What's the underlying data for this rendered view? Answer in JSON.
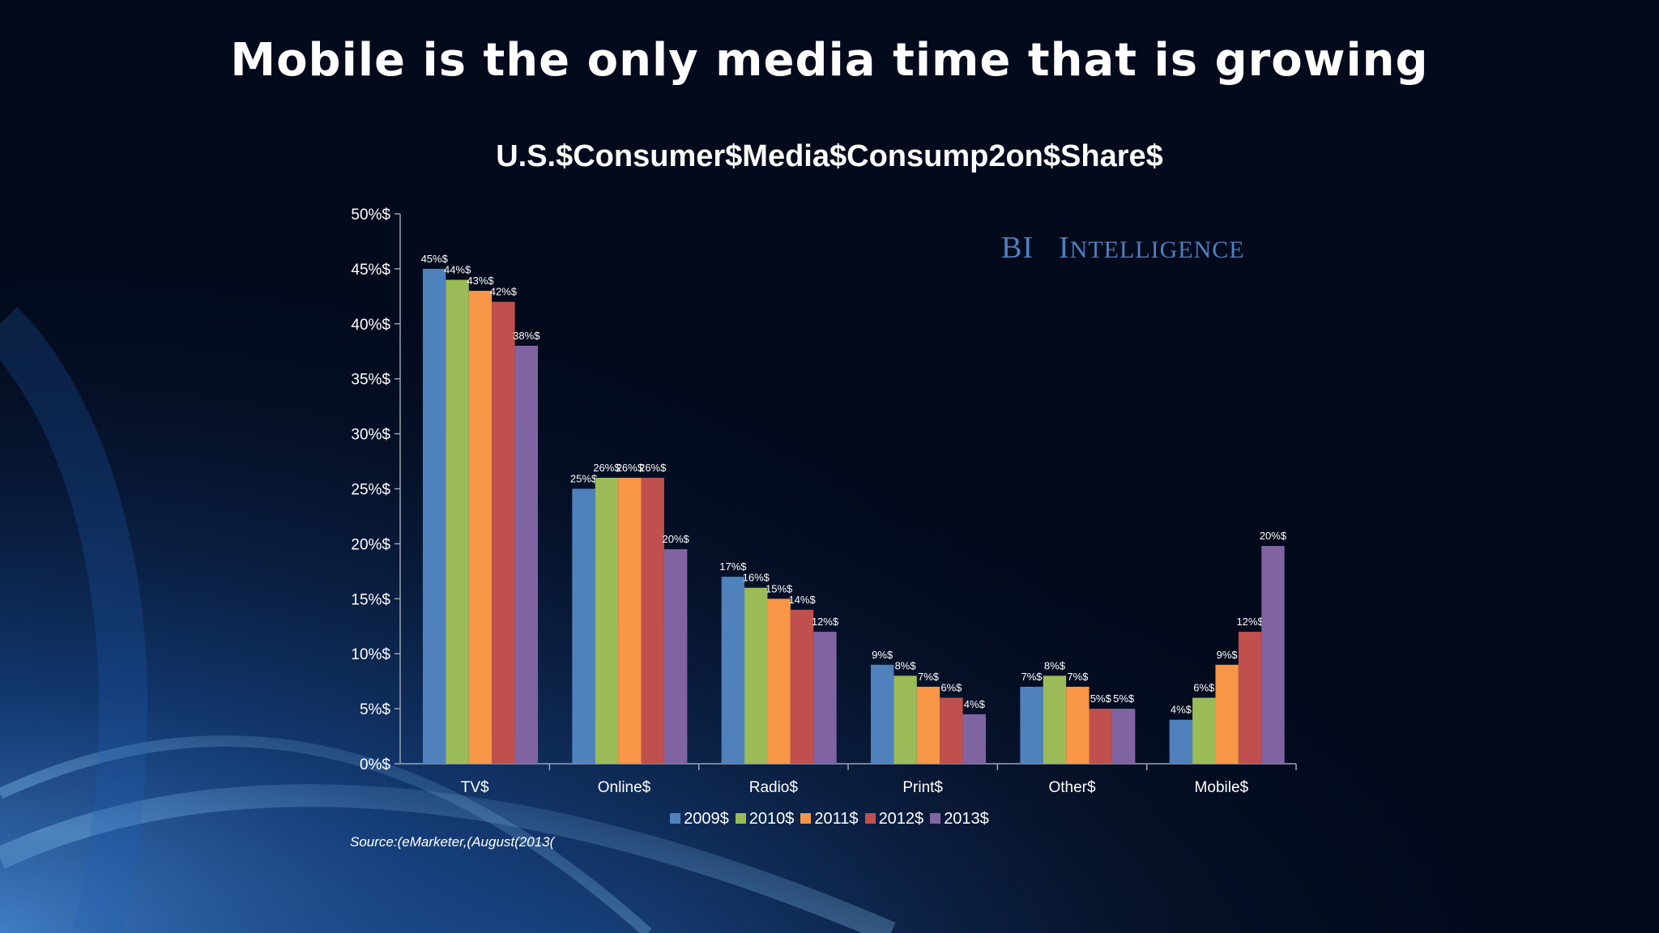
{
  "slide": {
    "title": "Mobile is the only media time that is growing",
    "brand_primary": "BI",
    "brand_secondary": "Intelligence",
    "source": "Source:(eMarketer,(August(2013("
  },
  "chart_data": {
    "type": "bar",
    "title": "U.S.$Consumer$Media$Consump2on$Share$",
    "xlabel": "",
    "ylabel": "",
    "ylim": [
      0,
      50
    ],
    "yticks": [
      "0%$",
      "5%$",
      "10%$",
      "15%$",
      "20%$",
      "25%$",
      "30%$",
      "35%$",
      "40%$",
      "45%$",
      "50%$"
    ],
    "categories": [
      "TV$",
      "Online$",
      "Radio$",
      "Print$",
      "Other$",
      "Mobile$"
    ],
    "legend_position": "bottom",
    "grid": false,
    "series": [
      {
        "name": "2009$",
        "color": "#4f81bd",
        "values": [
          45,
          25,
          17,
          9,
          7,
          4
        ],
        "labels": [
          "45%$",
          "25%$",
          "17%$",
          "9%$",
          "7%$",
          "4%$"
        ]
      },
      {
        "name": "2010$",
        "color": "#9bbb59",
        "values": [
          44,
          26,
          16,
          8,
          8,
          6
        ],
        "labels": [
          "44%$",
          "26%$",
          "16%$",
          "8%$",
          "8%$",
          "6%$"
        ]
      },
      {
        "name": "2011$",
        "color": "#f79646",
        "values": [
          43,
          26,
          15,
          7,
          7,
          9
        ],
        "labels": [
          "43%$",
          "26%$",
          "15%$",
          "7%$",
          "7%$",
          "9%$"
        ]
      },
      {
        "name": "2012$",
        "color": "#c0504d",
        "values": [
          42,
          26,
          14,
          6,
          5,
          12
        ],
        "labels": [
          "42%$",
          "26%$",
          "14%$",
          "6%$",
          "5%$",
          "12%$"
        ]
      },
      {
        "name": "2013$",
        "color": "#8064a2",
        "values": [
          38,
          19.5,
          12,
          4.5,
          5,
          19.8
        ],
        "labels": [
          "38%$",
          "20%$",
          "12%$",
          "4%$",
          "5%$",
          "20%$"
        ]
      }
    ]
  }
}
